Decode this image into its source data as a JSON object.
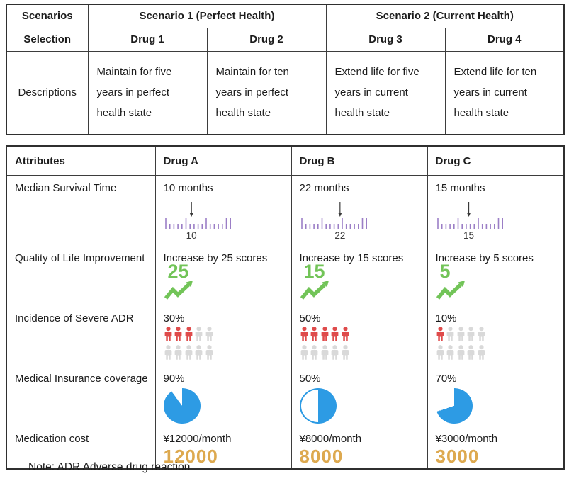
{
  "colors": {
    "ruler_purple": "#9b7ec6",
    "arrow_dark": "#3a3a3a",
    "trend_green": "#72c458",
    "adr_red": "#df4b4b",
    "adr_gray": "#d9d9d9",
    "pie_blue": "#2d9be4",
    "cost_gold": "#dda94f"
  },
  "scenario_table": {
    "corner_label": "Scenarios",
    "scenario_groups": [
      "Scenario 1 (Perfect Health)",
      "Scenario 2 (Current Health)"
    ],
    "selection_label": "Selection",
    "drugs": [
      "Drug 1",
      "Drug 2",
      "Drug 3",
      "Drug 4"
    ],
    "descriptions_label": "Descriptions",
    "descriptions": [
      "Maintain for five years in perfect health state",
      "Maintain for ten years in perfect health state",
      "Extend life for five years in current health state",
      "Extend life for ten years in current health state"
    ]
  },
  "attribute_table": {
    "headers": [
      "Attributes",
      "Drug A",
      "Drug B",
      "Drug C"
    ],
    "rows": [
      {
        "attribute": "Median Survival Time",
        "values": [
          "10 months",
          "22 months",
          "15 months"
        ],
        "icon": "ruler",
        "icon_values": [
          10,
          22,
          15
        ]
      },
      {
        "attribute": "Quality of Life Improvement",
        "values": [
          "Increase by 25 scores",
          "Increase by 15 scores",
          "Increase by 5 scores"
        ],
        "icon": "trend",
        "icon_values": [
          25,
          15,
          5
        ]
      },
      {
        "attribute": "Incidence of Severe ADR",
        "values": [
          "30%",
          "50%",
          "10%"
        ],
        "icon": "people",
        "icon_values": [
          3,
          5,
          1
        ],
        "people_total": 10
      },
      {
        "attribute": "Medical Insurance coverage",
        "values": [
          "90%",
          "50%",
          "70%"
        ],
        "icon": "pie",
        "icon_values": [
          90,
          50,
          70
        ]
      },
      {
        "attribute": "Medication cost",
        "values": [
          "¥12000/month",
          "¥8000/month",
          "¥3000/month"
        ],
        "icon": "cost",
        "icon_values": [
          "12000",
          "8000",
          "3000"
        ]
      }
    ]
  },
  "note": "Note: ADR Adverse drug reaction"
}
